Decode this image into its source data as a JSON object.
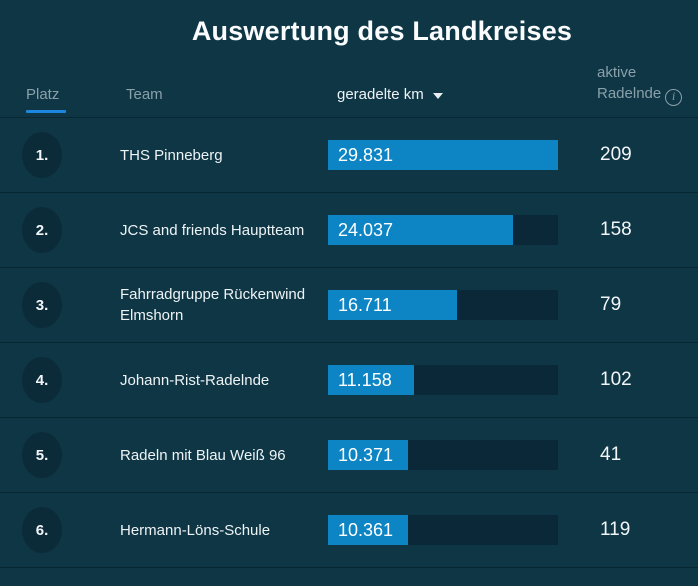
{
  "title": "Auswertung des Landkreises",
  "colors": {
    "background": "#0e3645",
    "row_separator": "#092633",
    "badge_circle": "#0c2b39",
    "bar_track": "#0a2837",
    "bar_fill": "#0d85c4",
    "active_column_underline": "#1d87e0",
    "header_text": "#8aa0ab",
    "primary_text": "#f2f6f8"
  },
  "table": {
    "columns": {
      "rank": "Platz",
      "team": "Team",
      "km": "geradelte km",
      "active_line1": "aktive",
      "active_line2": "Radelnde"
    },
    "sort": {
      "column": "geradelte km",
      "direction": "desc"
    },
    "icons": {
      "sort_desc": "triangle-down",
      "info": "circle-i",
      "info_glyph": "i"
    }
  },
  "rows": [
    {
      "rank": "1.",
      "team": "THS Pinneberg",
      "km": "29.831",
      "active": "209"
    },
    {
      "rank": "2.",
      "team": "JCS and friends Hauptteam",
      "km": "24.037",
      "active": "158"
    },
    {
      "rank": "3.",
      "team": "Fahrradgruppe Rückenwind Elmshorn",
      "km": "16.711",
      "active": "79"
    },
    {
      "rank": "4.",
      "team": "Johann-Rist-Radelnde",
      "km": "11.158",
      "active": "102"
    },
    {
      "rank": "5.",
      "team": "Radeln mit Blau Weiß 96",
      "km": "10.371",
      "active": "41"
    },
    {
      "rank": "6.",
      "team": "Hermann-Löns-Schule",
      "km": "10.361",
      "active": "119"
    }
  ]
}
